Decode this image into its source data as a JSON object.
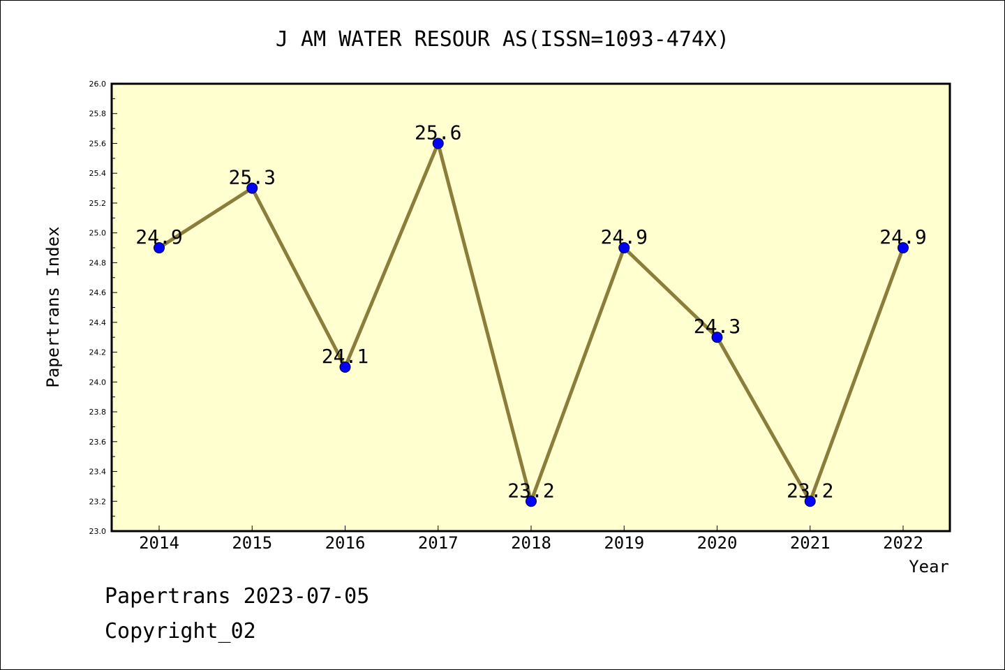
{
  "chart_data": {
    "type": "line",
    "title": "J AM WATER RESOUR AS(ISSN=1093-474X)",
    "xlabel": "Year",
    "ylabel": "Papertrans Index",
    "categories": [
      "2014",
      "2015",
      "2016",
      "2017",
      "2018",
      "2019",
      "2020",
      "2021",
      "2022"
    ],
    "values": [
      24.9,
      25.3,
      24.1,
      25.6,
      23.2,
      24.9,
      24.3,
      23.2,
      24.9
    ],
    "data_labels": [
      "24.9",
      "25.3",
      "24.1",
      "25.6",
      "23.2",
      "24.9",
      "24.3",
      "23.2",
      "24.9"
    ],
    "ylim": [
      23.0,
      26.0
    ],
    "yticks": [
      "23.0",
      "23.2",
      "23.4",
      "23.6",
      "23.8",
      "24.0",
      "24.2",
      "24.4",
      "24.6",
      "24.8",
      "25.0",
      "25.2",
      "25.4",
      "25.6",
      "25.8",
      "26.0"
    ],
    "grid": false,
    "legend": "none",
    "colors": {
      "plot_background": "#ffffd0",
      "line": "#8b7d3a",
      "marker": "#0000ff"
    }
  },
  "footer": {
    "line1": "Papertrans 2023-07-05",
    "line2": "Copyright_02"
  }
}
